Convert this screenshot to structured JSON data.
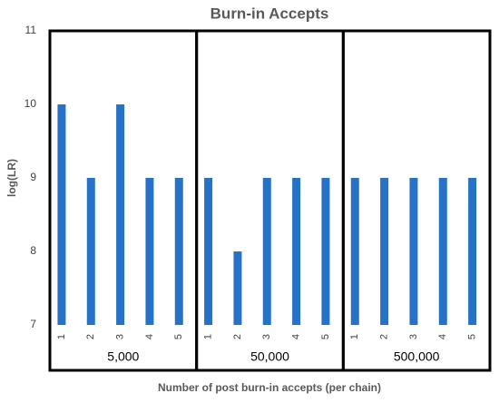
{
  "chart_data": {
    "type": "bar",
    "title": "Burn-in Accepts",
    "y_label": "log(LR)",
    "x_label": "Number of post burn-in accepts (per chain)",
    "color": "#2572c6",
    "ylim": [
      7,
      11
    ],
    "yticks": [
      7,
      8,
      9,
      10,
      11
    ],
    "grid": false,
    "groups": [
      {
        "name": "5,000",
        "categories": [
          "1",
          "2",
          "3",
          "4",
          "5"
        ],
        "values": [
          10,
          9,
          10,
          9,
          9
        ]
      },
      {
        "name": "50,000",
        "categories": [
          "1",
          "2",
          "3",
          "4",
          "5"
        ],
        "values": [
          9,
          8,
          9,
          9,
          9
        ]
      },
      {
        "name": "500,000",
        "categories": [
          "1",
          "2",
          "3",
          "4",
          "5"
        ],
        "values": [
          9,
          9,
          9,
          9,
          9
        ]
      }
    ]
  }
}
